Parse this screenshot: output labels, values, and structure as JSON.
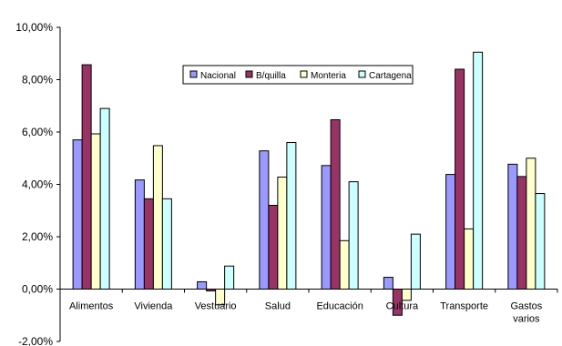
{
  "chart_data": {
    "type": "bar",
    "title": "",
    "xlabel": "",
    "ylabel": "",
    "ylim": [
      -0.02,
      0.1
    ],
    "y_ticks": [
      "-2,00%",
      "0,00%",
      "2,00%",
      "4,00%",
      "6,00%",
      "8,00%",
      "10,00%"
    ],
    "categories": [
      [
        "Alimentos"
      ],
      [
        "Vivienda"
      ],
      [
        "Vestuario"
      ],
      [
        "Salud"
      ],
      [
        "Educación"
      ],
      [
        "Cultura"
      ],
      [
        "Transporte"
      ],
      [
        "Gastos",
        "varios"
      ]
    ],
    "series": [
      {
        "name": "Nacional",
        "color": "#9999FF",
        "values": [
          0.057,
          0.0417,
          0.0028,
          0.0528,
          0.0472,
          0.0045,
          0.0438,
          0.0477
        ]
      },
      {
        "name": "B/quilla",
        "color": "#993366",
        "values": [
          0.0857,
          0.0345,
          -0.0007,
          0.032,
          0.0647,
          -0.01,
          0.084,
          0.043
        ]
      },
      {
        "name": "Monteria",
        "color": "#FFFFCC",
        "values": [
          0.0593,
          0.0548,
          -0.006,
          0.0428,
          0.0185,
          -0.0043,
          0.023,
          0.05
        ]
      },
      {
        "name": "Cartagena",
        "color": "#CCFFFF",
        "values": [
          0.069,
          0.0345,
          0.0088,
          0.056,
          0.041,
          0.021,
          0.0905,
          0.0365
        ]
      }
    ],
    "legend_position": "top-center",
    "grid": false
  }
}
